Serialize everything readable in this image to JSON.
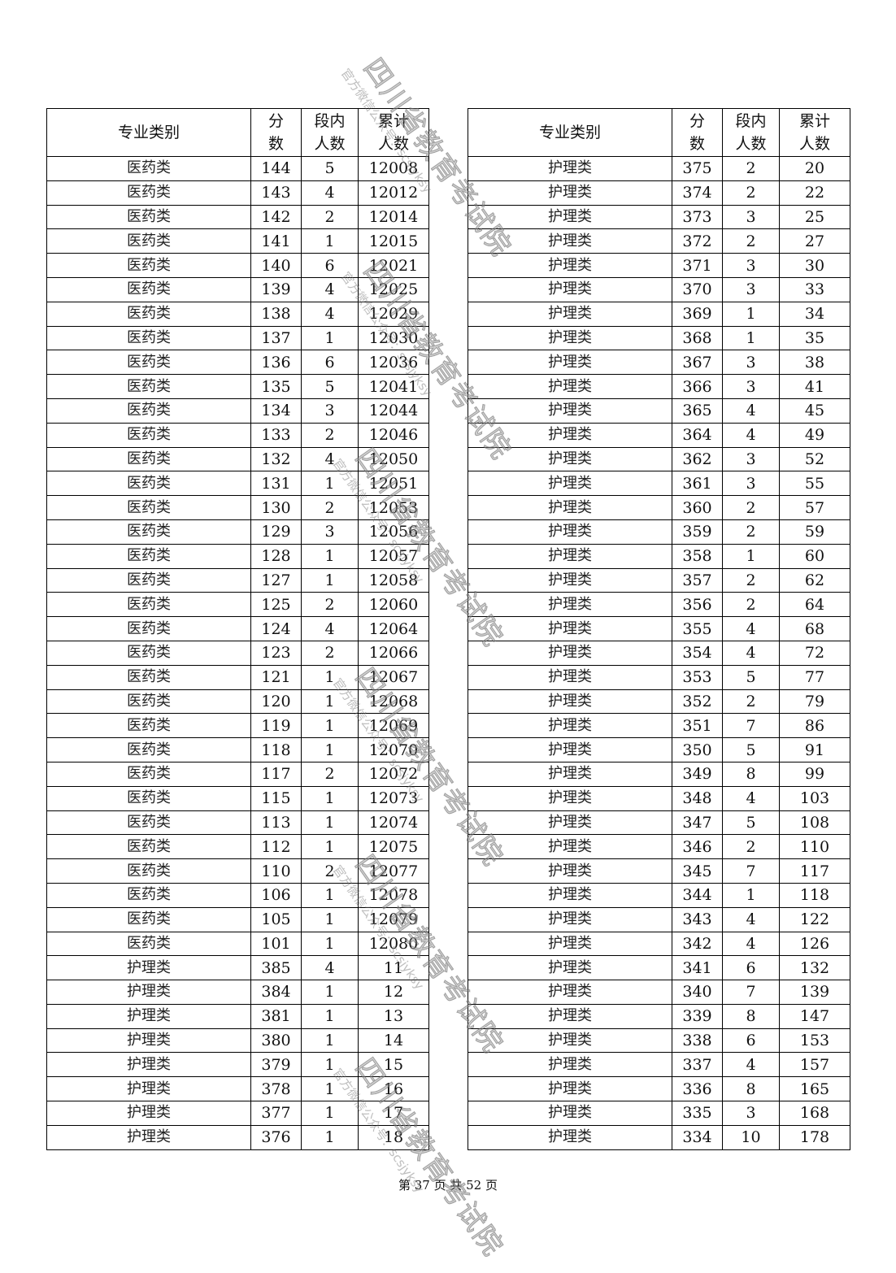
{
  "headers": {
    "category": "专业类别",
    "score_l1": "分",
    "score_l2": "数",
    "count_l1": "段内",
    "count_l2": "人数",
    "cum_l1": "累计",
    "cum_l2": "人数"
  },
  "left_rows": [
    [
      "医药类",
      144,
      5,
      12008
    ],
    [
      "医药类",
      143,
      4,
      12012
    ],
    [
      "医药类",
      142,
      2,
      12014
    ],
    [
      "医药类",
      141,
      1,
      12015
    ],
    [
      "医药类",
      140,
      6,
      12021
    ],
    [
      "医药类",
      139,
      4,
      12025
    ],
    [
      "医药类",
      138,
      4,
      12029
    ],
    [
      "医药类",
      137,
      1,
      12030
    ],
    [
      "医药类",
      136,
      6,
      12036
    ],
    [
      "医药类",
      135,
      5,
      12041
    ],
    [
      "医药类",
      134,
      3,
      12044
    ],
    [
      "医药类",
      133,
      2,
      12046
    ],
    [
      "医药类",
      132,
      4,
      12050
    ],
    [
      "医药类",
      131,
      1,
      12051
    ],
    [
      "医药类",
      130,
      2,
      12053
    ],
    [
      "医药类",
      129,
      3,
      12056
    ],
    [
      "医药类",
      128,
      1,
      12057
    ],
    [
      "医药类",
      127,
      1,
      12058
    ],
    [
      "医药类",
      125,
      2,
      12060
    ],
    [
      "医药类",
      124,
      4,
      12064
    ],
    [
      "医药类",
      123,
      2,
      12066
    ],
    [
      "医药类",
      121,
      1,
      12067
    ],
    [
      "医药类",
      120,
      1,
      12068
    ],
    [
      "医药类",
      119,
      1,
      12069
    ],
    [
      "医药类",
      118,
      1,
      12070
    ],
    [
      "医药类",
      117,
      2,
      12072
    ],
    [
      "医药类",
      115,
      1,
      12073
    ],
    [
      "医药类",
      113,
      1,
      12074
    ],
    [
      "医药类",
      112,
      1,
      12075
    ],
    [
      "医药类",
      110,
      2,
      12077
    ],
    [
      "医药类",
      106,
      1,
      12078
    ],
    [
      "医药类",
      105,
      1,
      12079
    ],
    [
      "医药类",
      101,
      1,
      12080
    ],
    [
      "护理类",
      385,
      4,
      11
    ],
    [
      "护理类",
      384,
      1,
      12
    ],
    [
      "护理类",
      381,
      1,
      13
    ],
    [
      "护理类",
      380,
      1,
      14
    ],
    [
      "护理类",
      379,
      1,
      15
    ],
    [
      "护理类",
      378,
      1,
      16
    ],
    [
      "护理类",
      377,
      1,
      17
    ],
    [
      "护理类",
      376,
      1,
      18
    ]
  ],
  "right_rows": [
    [
      "护理类",
      375,
      2,
      20
    ],
    [
      "护理类",
      374,
      2,
      22
    ],
    [
      "护理类",
      373,
      3,
      25
    ],
    [
      "护理类",
      372,
      2,
      27
    ],
    [
      "护理类",
      371,
      3,
      30
    ],
    [
      "护理类",
      370,
      3,
      33
    ],
    [
      "护理类",
      369,
      1,
      34
    ],
    [
      "护理类",
      368,
      1,
      35
    ],
    [
      "护理类",
      367,
      3,
      38
    ],
    [
      "护理类",
      366,
      3,
      41
    ],
    [
      "护理类",
      365,
      4,
      45
    ],
    [
      "护理类",
      364,
      4,
      49
    ],
    [
      "护理类",
      362,
      3,
      52
    ],
    [
      "护理类",
      361,
      3,
      55
    ],
    [
      "护理类",
      360,
      2,
      57
    ],
    [
      "护理类",
      359,
      2,
      59
    ],
    [
      "护理类",
      358,
      1,
      60
    ],
    [
      "护理类",
      357,
      2,
      62
    ],
    [
      "护理类",
      356,
      2,
      64
    ],
    [
      "护理类",
      355,
      4,
      68
    ],
    [
      "护理类",
      354,
      4,
      72
    ],
    [
      "护理类",
      353,
      5,
      77
    ],
    [
      "护理类",
      352,
      2,
      79
    ],
    [
      "护理类",
      351,
      7,
      86
    ],
    [
      "护理类",
      350,
      5,
      91
    ],
    [
      "护理类",
      349,
      8,
      99
    ],
    [
      "护理类",
      348,
      4,
      103
    ],
    [
      "护理类",
      347,
      5,
      108
    ],
    [
      "护理类",
      346,
      2,
      110
    ],
    [
      "护理类",
      345,
      7,
      117
    ],
    [
      "护理类",
      344,
      1,
      118
    ],
    [
      "护理类",
      343,
      4,
      122
    ],
    [
      "护理类",
      342,
      4,
      126
    ],
    [
      "护理类",
      341,
      6,
      132
    ],
    [
      "护理类",
      340,
      7,
      139
    ],
    [
      "护理类",
      339,
      8,
      147
    ],
    [
      "护理类",
      338,
      6,
      153
    ],
    [
      "护理类",
      337,
      4,
      157
    ],
    [
      "护理类",
      336,
      8,
      165
    ],
    [
      "护理类",
      335,
      3,
      168
    ],
    [
      "护理类",
      334,
      10,
      178
    ]
  ],
  "footer": "第 37 页 共 52 页",
  "watermark": {
    "title": "四川省教育考试院",
    "subtitle": "官方微信公众号：scsjyksy"
  }
}
